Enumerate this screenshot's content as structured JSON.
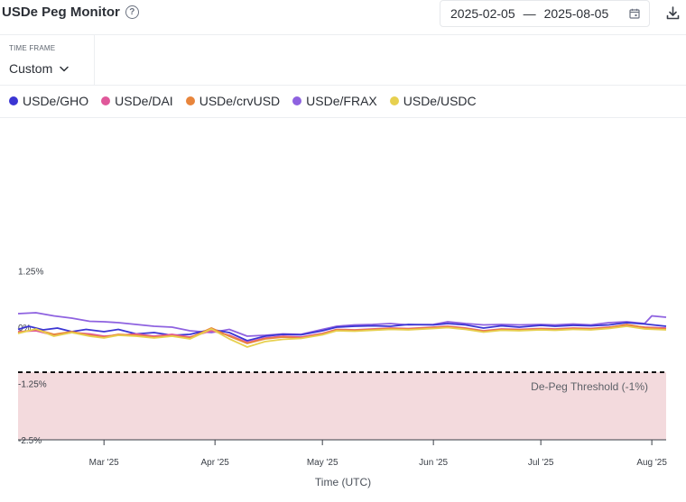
{
  "header": {
    "title": "USDe Peg Monitor",
    "date_start": "2025-02-05",
    "date_end": "2025-08-05",
    "date_separator": "—"
  },
  "timeframe": {
    "label": "TIME FRAME",
    "value": "Custom"
  },
  "legend": [
    {
      "label": "USDe/GHO",
      "color": "#3b35d3"
    },
    {
      "label": "USDe/DAI",
      "color": "#e0589a"
    },
    {
      "label": "USDe/crvUSD",
      "color": "#e8853c"
    },
    {
      "label": "USDe/FRAX",
      "color": "#8e62e0"
    },
    {
      "label": "USDe/USDC",
      "color": "#e7d04f"
    }
  ],
  "icons": [
    "help-icon",
    "calendar-icon",
    "download-icon",
    "chevron-down-icon"
  ],
  "chart_data": {
    "type": "line",
    "xlabel": "Time (UTC)",
    "ylabel": "",
    "x_ticks": [
      "Mar '25",
      "Apr '25",
      "May '25",
      "Jun '25",
      "Jul '25",
      "Aug '25"
    ],
    "y_ticks": [
      "1.25%",
      "0%",
      "-1.25%",
      "-2.5%"
    ],
    "ylim": [
      -2.5,
      2.5
    ],
    "xlim": [
      "2025-02-05",
      "2025-08-05"
    ],
    "threshold": {
      "value": -1.0,
      "label": "De-Peg Threshold (-1%)",
      "shaded_below": true,
      "shade_color": "#f3dadd"
    },
    "series": [
      {
        "name": "USDe/FRAX",
        "color": "#8e62e0",
        "points": [
          [
            "2025-02-05",
            0.3
          ],
          [
            "2025-02-10",
            0.32
          ],
          [
            "2025-02-15",
            0.25
          ],
          [
            "2025-02-20",
            0.2
          ],
          [
            "2025-02-25",
            0.13
          ],
          [
            "2025-03-01",
            0.12
          ],
          [
            "2025-03-05",
            0.1
          ],
          [
            "2025-03-10",
            0.06
          ],
          [
            "2025-03-15",
            0.02
          ],
          [
            "2025-03-20",
            0.0
          ],
          [
            "2025-03-25",
            -0.08
          ],
          [
            "2025-03-31",
            -0.12
          ],
          [
            "2025-04-05",
            -0.05
          ],
          [
            "2025-04-10",
            -0.2
          ],
          [
            "2025-04-15",
            -0.18
          ],
          [
            "2025-04-20",
            -0.15
          ],
          [
            "2025-04-25",
            -0.16
          ],
          [
            "2025-05-01",
            -0.05
          ],
          [
            "2025-05-05",
            0.02
          ],
          [
            "2025-05-10",
            0.05
          ],
          [
            "2025-05-15",
            0.06
          ],
          [
            "2025-05-20",
            0.08
          ],
          [
            "2025-05-25",
            0.05
          ],
          [
            "2025-06-01",
            0.06
          ],
          [
            "2025-06-05",
            0.12
          ],
          [
            "2025-06-10",
            0.08
          ],
          [
            "2025-06-15",
            0.05
          ],
          [
            "2025-06-20",
            0.06
          ],
          [
            "2025-06-25",
            0.05
          ],
          [
            "2025-07-01",
            0.06
          ],
          [
            "2025-07-05",
            0.05
          ],
          [
            "2025-07-10",
            0.07
          ],
          [
            "2025-07-15",
            0.05
          ],
          [
            "2025-07-20",
            0.1
          ],
          [
            "2025-07-25",
            0.12
          ],
          [
            "2025-07-30",
            0.08
          ],
          [
            "2025-08-01",
            0.25
          ],
          [
            "2025-08-05",
            0.22
          ]
        ]
      },
      {
        "name": "USDe/GHO",
        "color": "#3b35d3",
        "points": [
          [
            "2025-02-05",
            -0.05
          ],
          [
            "2025-02-08",
            0.02
          ],
          [
            "2025-02-12",
            -0.06
          ],
          [
            "2025-02-16",
            -0.02
          ],
          [
            "2025-02-20",
            -0.1
          ],
          [
            "2025-02-24",
            -0.05
          ],
          [
            "2025-03-01",
            -0.1
          ],
          [
            "2025-03-05",
            -0.05
          ],
          [
            "2025-03-10",
            -0.15
          ],
          [
            "2025-03-15",
            -0.12
          ],
          [
            "2025-03-20",
            -0.18
          ],
          [
            "2025-03-25",
            -0.16
          ],
          [
            "2025-03-31",
            -0.05
          ],
          [
            "2025-04-05",
            -0.12
          ],
          [
            "2025-04-10",
            -0.3
          ],
          [
            "2025-04-15",
            -0.2
          ],
          [
            "2025-04-20",
            -0.16
          ],
          [
            "2025-04-25",
            -0.17
          ],
          [
            "2025-05-01",
            -0.08
          ],
          [
            "2025-05-05",
            0.0
          ],
          [
            "2025-05-10",
            0.02
          ],
          [
            "2025-05-15",
            0.03
          ],
          [
            "2025-05-20",
            0.02
          ],
          [
            "2025-05-25",
            0.06
          ],
          [
            "2025-06-01",
            0.05
          ],
          [
            "2025-06-05",
            0.08
          ],
          [
            "2025-06-10",
            0.05
          ],
          [
            "2025-06-15",
            -0.02
          ],
          [
            "2025-06-20",
            0.03
          ],
          [
            "2025-06-25",
            0.0
          ],
          [
            "2025-07-01",
            0.04
          ],
          [
            "2025-07-05",
            0.02
          ],
          [
            "2025-07-10",
            0.04
          ],
          [
            "2025-07-15",
            0.03
          ],
          [
            "2025-07-20",
            0.05
          ],
          [
            "2025-07-25",
            0.1
          ],
          [
            "2025-07-30",
            0.07
          ],
          [
            "2025-08-05",
            0.02
          ]
        ]
      },
      {
        "name": "USDe/DAI",
        "color": "#e0589a",
        "points": [
          [
            "2025-02-05",
            -0.1
          ],
          [
            "2025-02-10",
            -0.08
          ],
          [
            "2025-02-15",
            -0.18
          ],
          [
            "2025-02-20",
            -0.12
          ],
          [
            "2025-02-25",
            -0.15
          ],
          [
            "2025-03-01",
            -0.2
          ],
          [
            "2025-03-05",
            -0.18
          ],
          [
            "2025-03-10",
            -0.15
          ],
          [
            "2025-03-15",
            -0.2
          ],
          [
            "2025-03-20",
            -0.16
          ],
          [
            "2025-03-25",
            -0.22
          ],
          [
            "2025-03-31",
            -0.08
          ],
          [
            "2025-04-05",
            -0.18
          ],
          [
            "2025-04-10",
            -0.34
          ],
          [
            "2025-04-15",
            -0.24
          ],
          [
            "2025-04-20",
            -0.2
          ],
          [
            "2025-04-25",
            -0.22
          ],
          [
            "2025-05-01",
            -0.14
          ],
          [
            "2025-05-05",
            -0.05
          ],
          [
            "2025-05-10",
            -0.06
          ],
          [
            "2025-05-15",
            -0.04
          ],
          [
            "2025-05-20",
            -0.02
          ],
          [
            "2025-05-25",
            -0.03
          ],
          [
            "2025-06-01",
            0.0
          ],
          [
            "2025-06-05",
            0.02
          ],
          [
            "2025-06-10",
            -0.02
          ],
          [
            "2025-06-15",
            -0.08
          ],
          [
            "2025-06-20",
            -0.04
          ],
          [
            "2025-06-25",
            -0.05
          ],
          [
            "2025-07-01",
            -0.03
          ],
          [
            "2025-07-05",
            -0.04
          ],
          [
            "2025-07-10",
            -0.02
          ],
          [
            "2025-07-15",
            -0.03
          ],
          [
            "2025-07-20",
            0.0
          ],
          [
            "2025-07-25",
            0.04
          ],
          [
            "2025-07-30",
            0.0
          ],
          [
            "2025-08-05",
            -0.02
          ]
        ]
      },
      {
        "name": "USDe/crvUSD",
        "color": "#e8853c",
        "points": [
          [
            "2025-02-05",
            -0.12
          ],
          [
            "2025-02-10",
            -0.05
          ],
          [
            "2025-02-15",
            -0.16
          ],
          [
            "2025-02-20",
            -0.1
          ],
          [
            "2025-02-25",
            -0.18
          ],
          [
            "2025-03-01",
            -0.22
          ],
          [
            "2025-03-05",
            -0.16
          ],
          [
            "2025-03-10",
            -0.18
          ],
          [
            "2025-03-15",
            -0.22
          ],
          [
            "2025-03-20",
            -0.19
          ],
          [
            "2025-03-25",
            -0.24
          ],
          [
            "2025-03-31",
            -0.02
          ],
          [
            "2025-04-05",
            -0.2
          ],
          [
            "2025-04-10",
            -0.36
          ],
          [
            "2025-04-15",
            -0.26
          ],
          [
            "2025-04-20",
            -0.22
          ],
          [
            "2025-04-25",
            -0.24
          ],
          [
            "2025-05-01",
            -0.15
          ],
          [
            "2025-05-05",
            -0.06
          ],
          [
            "2025-05-10",
            -0.07
          ],
          [
            "2025-05-15",
            -0.05
          ],
          [
            "2025-05-20",
            -0.03
          ],
          [
            "2025-05-25",
            -0.04
          ],
          [
            "2025-06-01",
            -0.01
          ],
          [
            "2025-06-05",
            0.01
          ],
          [
            "2025-06-10",
            -0.03
          ],
          [
            "2025-06-15",
            -0.09
          ],
          [
            "2025-06-20",
            -0.05
          ],
          [
            "2025-06-25",
            -0.06
          ],
          [
            "2025-07-01",
            -0.04
          ],
          [
            "2025-07-05",
            -0.05
          ],
          [
            "2025-07-10",
            -0.03
          ],
          [
            "2025-07-15",
            -0.04
          ],
          [
            "2025-07-20",
            -0.01
          ],
          [
            "2025-07-25",
            0.06
          ],
          [
            "2025-07-30",
            -0.01
          ],
          [
            "2025-08-05",
            -0.04
          ]
        ]
      },
      {
        "name": "USDe/USDC",
        "color": "#e7d04f",
        "points": [
          [
            "2025-02-05",
            -0.14
          ],
          [
            "2025-02-10",
            -0.04
          ],
          [
            "2025-02-15",
            -0.2
          ],
          [
            "2025-02-20",
            -0.12
          ],
          [
            "2025-02-25",
            -0.2
          ],
          [
            "2025-03-01",
            -0.24
          ],
          [
            "2025-03-05",
            -0.18
          ],
          [
            "2025-03-10",
            -0.2
          ],
          [
            "2025-03-15",
            -0.24
          ],
          [
            "2025-03-20",
            -0.2
          ],
          [
            "2025-03-25",
            -0.26
          ],
          [
            "2025-03-31",
            -0.04
          ],
          [
            "2025-04-05",
            -0.26
          ],
          [
            "2025-04-10",
            -0.44
          ],
          [
            "2025-04-15",
            -0.32
          ],
          [
            "2025-04-20",
            -0.27
          ],
          [
            "2025-04-25",
            -0.25
          ],
          [
            "2025-05-01",
            -0.17
          ],
          [
            "2025-05-05",
            -0.08
          ],
          [
            "2025-05-10",
            -0.09
          ],
          [
            "2025-05-15",
            -0.07
          ],
          [
            "2025-05-20",
            -0.05
          ],
          [
            "2025-05-25",
            -0.06
          ],
          [
            "2025-06-01",
            -0.03
          ],
          [
            "2025-06-05",
            -0.01
          ],
          [
            "2025-06-10",
            -0.05
          ],
          [
            "2025-06-15",
            -0.11
          ],
          [
            "2025-06-20",
            -0.07
          ],
          [
            "2025-06-25",
            -0.08
          ],
          [
            "2025-07-01",
            -0.06
          ],
          [
            "2025-07-05",
            -0.07
          ],
          [
            "2025-07-10",
            -0.05
          ],
          [
            "2025-07-15",
            -0.06
          ],
          [
            "2025-07-20",
            -0.03
          ],
          [
            "2025-07-25",
            0.02
          ],
          [
            "2025-07-30",
            -0.04
          ],
          [
            "2025-08-05",
            -0.06
          ]
        ]
      }
    ]
  }
}
